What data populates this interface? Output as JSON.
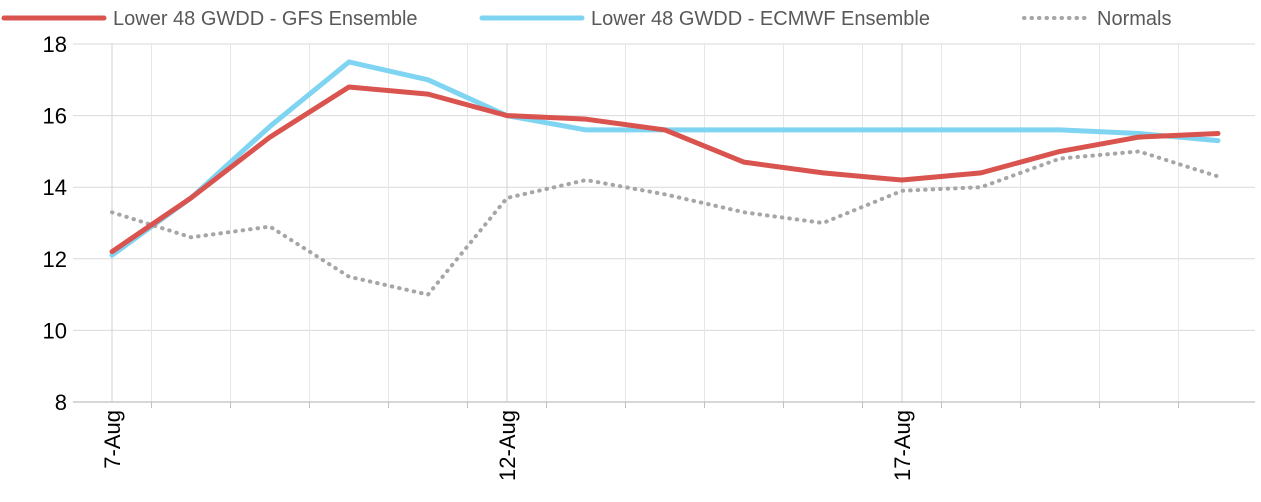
{
  "chart_data": {
    "type": "line",
    "title": "",
    "xlabel": "",
    "ylabel": "",
    "x": [
      "7-Aug",
      "8-Aug",
      "9-Aug",
      "10-Aug",
      "11-Aug",
      "12-Aug",
      "13-Aug",
      "14-Aug",
      "15-Aug",
      "16-Aug",
      "17-Aug",
      "18-Aug",
      "19-Aug",
      "20-Aug",
      "21-Aug"
    ],
    "x_tick_labels": [
      "7-Aug",
      "12-Aug",
      "17-Aug"
    ],
    "x_tick_indices": [
      0,
      5,
      10
    ],
    "ylim": [
      8,
      18
    ],
    "y_ticks": [
      8,
      10,
      12,
      14,
      16,
      18
    ],
    "grid": true,
    "legend_position": "top",
    "series": [
      {
        "name": "Lower 48 GWDD - GFS Ensemble",
        "color": "#d9534f",
        "style": "solid",
        "values": [
          12.2,
          13.7,
          15.4,
          16.8,
          16.6,
          16.0,
          15.9,
          15.6,
          14.7,
          14.4,
          14.2,
          14.4,
          15.0,
          15.4,
          15.5
        ]
      },
      {
        "name": "Lower 48 GWDD - ECMWF Ensemble",
        "color": "#7fd4f2",
        "style": "solid",
        "values": [
          12.1,
          13.7,
          15.7,
          17.5,
          17.0,
          16.0,
          15.6,
          15.6,
          15.6,
          15.6,
          15.6,
          15.6,
          15.6,
          15.5,
          15.3
        ]
      },
      {
        "name": "Normals",
        "color": "#a6a6a6",
        "style": "dotted",
        "values": [
          13.3,
          12.6,
          12.9,
          11.5,
          11.0,
          13.7,
          14.2,
          13.8,
          13.3,
          13.0,
          13.9,
          14.0,
          14.8,
          15.0,
          14.3
        ]
      }
    ]
  }
}
